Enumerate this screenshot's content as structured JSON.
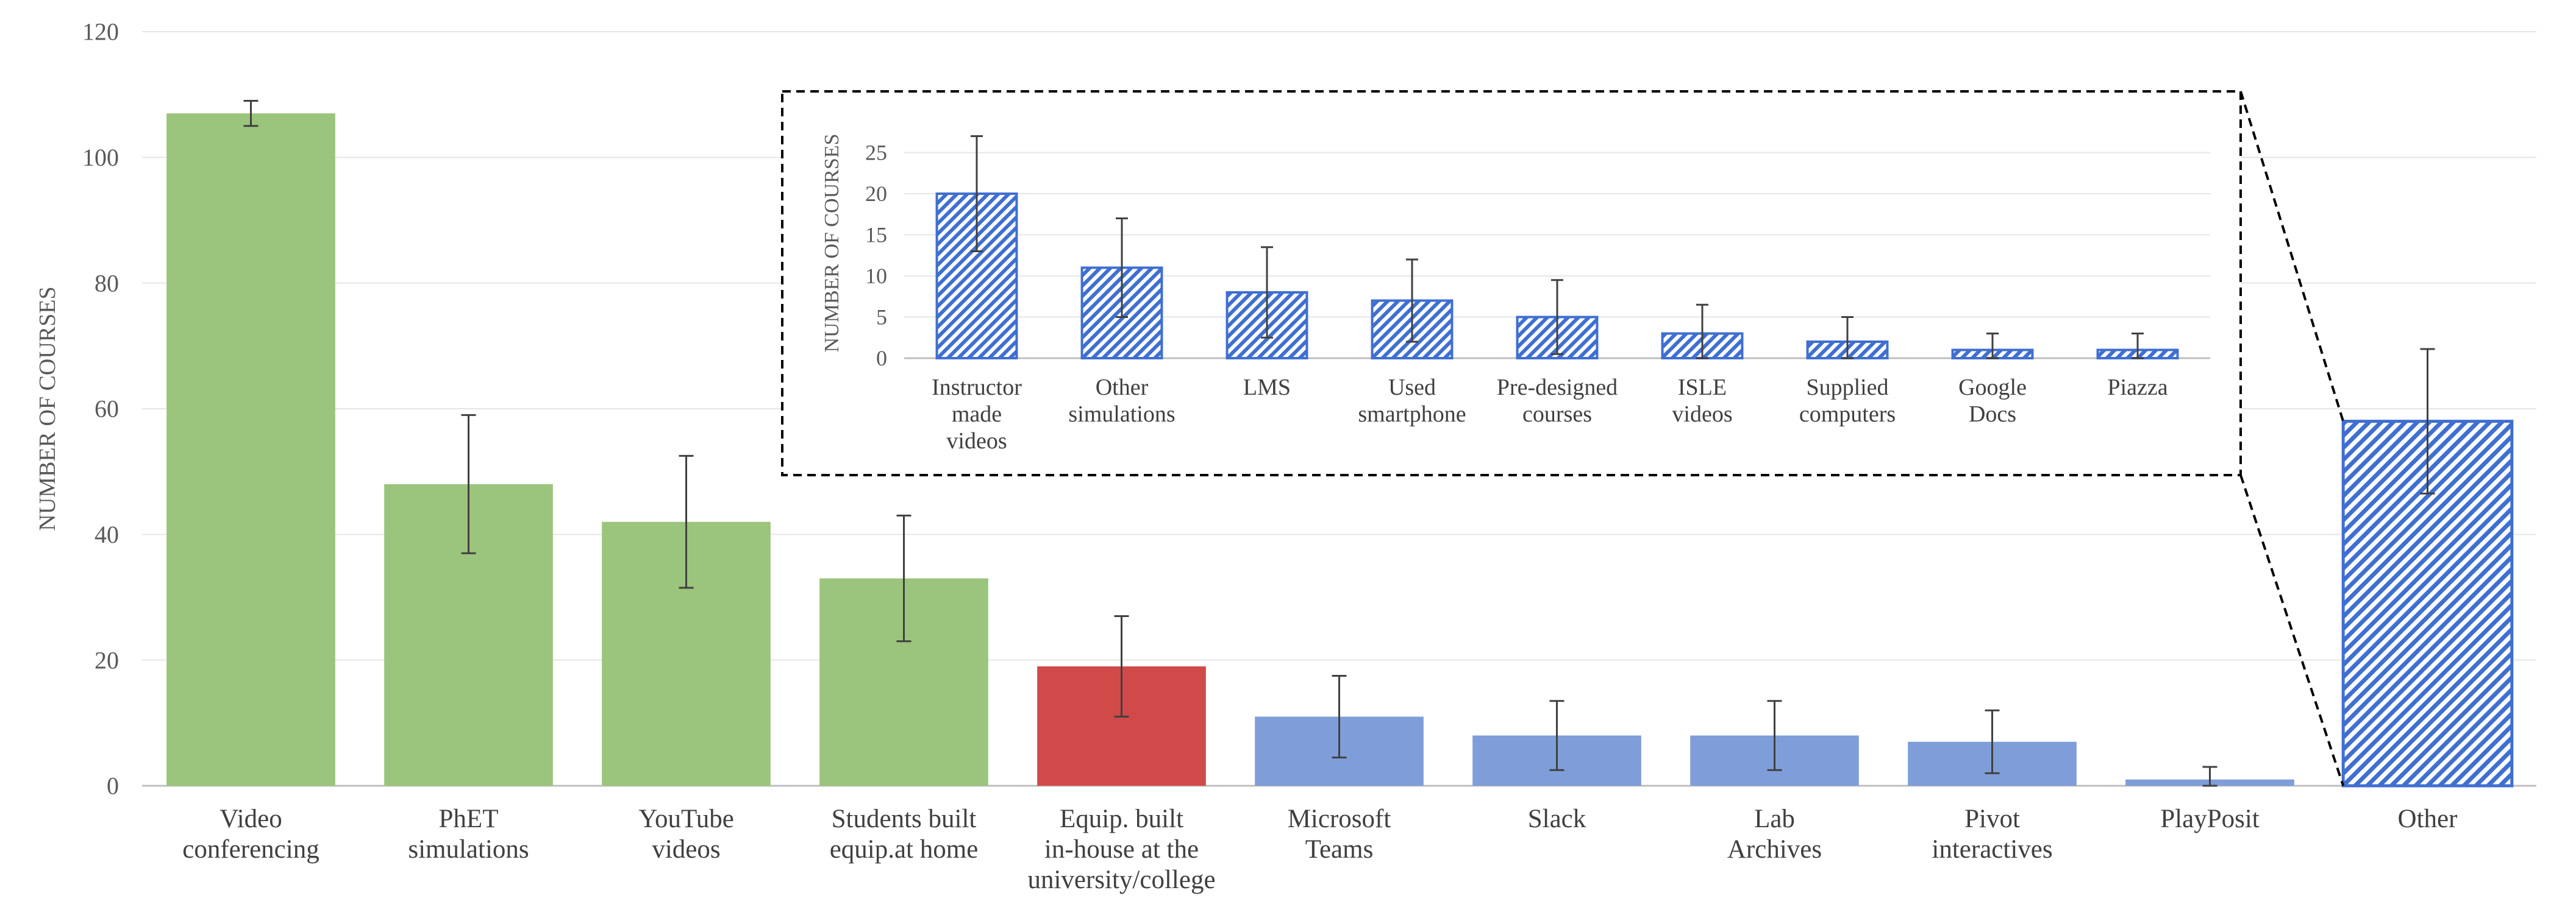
{
  "colors": {
    "green": "#9BC47C",
    "red": "#D14A4A",
    "blue": "#7F9ED9",
    "hatch": "#3F6FD0",
    "grid": "#E6E6E6",
    "axis": "#BFBFBF",
    "error": "#404040"
  },
  "chart_data": [
    {
      "type": "bar",
      "ylabel": "NUMBER OF COURSES",
      "xlabel": "",
      "ylim": [
        0,
        120
      ],
      "yticks": [
        0,
        20,
        40,
        60,
        80,
        100,
        120
      ],
      "grid": true,
      "categories": [
        {
          "lines": [
            "Video",
            "conferencing"
          ],
          "value": 107,
          "err": 2,
          "fill": "green"
        },
        {
          "lines": [
            "PhET",
            "simulations"
          ],
          "value": 48,
          "err": 11,
          "fill": "green"
        },
        {
          "lines": [
            "YouTube",
            "videos"
          ],
          "value": 42,
          "err": 10.5,
          "fill": "green"
        },
        {
          "lines": [
            "Students built",
            "equip.at home"
          ],
          "value": 33,
          "err": 10,
          "fill": "green"
        },
        {
          "lines": [
            "Equip. built",
            "in-house at the",
            "university/college"
          ],
          "value": 19,
          "err": 8,
          "fill": "red"
        },
        {
          "lines": [
            "Microsoft",
            "Teams"
          ],
          "value": 11,
          "err": 6.5,
          "fill": "blue"
        },
        {
          "lines": [
            "Slack"
          ],
          "value": 8,
          "err": 5.5,
          "fill": "blue"
        },
        {
          "lines": [
            "Lab",
            "Archives"
          ],
          "value": 8,
          "err": 5.5,
          "fill": "blue"
        },
        {
          "lines": [
            "Pivot",
            "interactives"
          ],
          "value": 7,
          "err": 5,
          "fill": "blue"
        },
        {
          "lines": [
            "PlayPosit"
          ],
          "value": 1,
          "err": 2,
          "fill": "blue"
        },
        {
          "lines": [
            "Other"
          ],
          "value": 58,
          "err": 11.5,
          "fill": "hatch"
        }
      ]
    },
    {
      "type": "bar",
      "role": "inset detail of Other",
      "ylabel": "NUMBER OF COURSES",
      "xlabel": "",
      "ylim": [
        0,
        28
      ],
      "yticks": [
        0,
        5,
        10,
        15,
        20,
        25
      ],
      "grid": true,
      "categories": [
        {
          "lines": [
            "Instructor",
            "made",
            "videos"
          ],
          "value": 20,
          "err": 7,
          "fill": "hatch"
        },
        {
          "lines": [
            "Other",
            "simulations"
          ],
          "value": 11,
          "err": 6,
          "fill": "hatch"
        },
        {
          "lines": [
            "LMS"
          ],
          "value": 8,
          "err": 5.5,
          "fill": "hatch"
        },
        {
          "lines": [
            "Used",
            "smartphone"
          ],
          "value": 7,
          "err": 5,
          "fill": "hatch"
        },
        {
          "lines": [
            "Pre-designed",
            "courses"
          ],
          "value": 5,
          "err": 4.5,
          "fill": "hatch"
        },
        {
          "lines": [
            "ISLE",
            "videos"
          ],
          "value": 3,
          "err": 3.5,
          "fill": "hatch"
        },
        {
          "lines": [
            "Supplied",
            "computers"
          ],
          "value": 2,
          "err": 3,
          "fill": "hatch"
        },
        {
          "lines": [
            "Google",
            "Docs"
          ],
          "value": 1,
          "err": 2,
          "fill": "hatch"
        },
        {
          "lines": [
            "Piazza"
          ],
          "value": 1,
          "err": 2,
          "fill": "hatch"
        }
      ]
    }
  ]
}
